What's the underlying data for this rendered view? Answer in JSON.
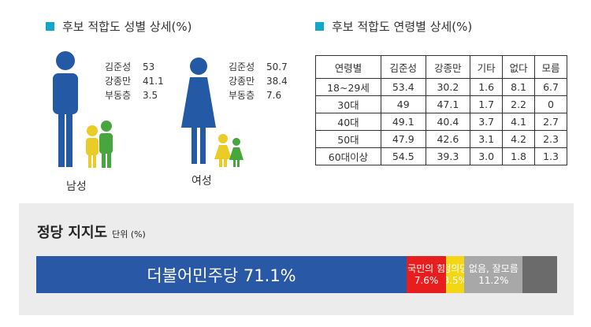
{
  "gender_section": {
    "title": "후보 적합도 성별 상세(%)",
    "male": {
      "caption": "남성",
      "stats": [
        {
          "name": "김준성",
          "value": "53"
        },
        {
          "name": "강종만",
          "value": "41.1"
        },
        {
          "name": "부동층",
          "value": "3.5"
        }
      ]
    },
    "female": {
      "caption": "여성",
      "stats": [
        {
          "name": "김준성",
          "value": "50.7"
        },
        {
          "name": "강종만",
          "value": "38.4"
        },
        {
          "name": "부동층",
          "value": "7.6"
        }
      ]
    },
    "colors": {
      "male_big": "#2459a6",
      "green": "#47a63e",
      "yellow": "#ebcb26"
    }
  },
  "age_section": {
    "title": "후보 적합도 연령별  상세(%)",
    "headers": [
      "연령별",
      "김준성",
      "강종만",
      "기타",
      "없다",
      "모름"
    ],
    "rows": [
      [
        "18~29세",
        "53.4",
        "30.2",
        "1.6",
        "8.1",
        "6.7"
      ],
      [
        "30대",
        "49",
        "47.1",
        "1.7",
        "2.2",
        "0"
      ],
      [
        "40대",
        "49.1",
        "40.4",
        "3.7",
        "4.1",
        "2.7"
      ],
      [
        "50대",
        "47.9",
        "42.6",
        "3.1",
        "4.2",
        "2.3"
      ],
      [
        "60대이상",
        "54.5",
        "39.3",
        "3.0",
        "1.8",
        "1.3"
      ]
    ]
  },
  "party_section": {
    "title": "정당 지지도",
    "unit": "단위 (%)"
  },
  "chart_data": {
    "type": "bar",
    "title": "정당 지지도",
    "unit": "단위 (%)",
    "categories": [
      "더불어민주당",
      "국민의 힘",
      "정의당",
      "없음, 잘모름"
    ],
    "values": [
      71.1,
      7.6,
      3.5,
      11.2
    ],
    "value_labels": [
      "71.1%",
      "7.6%",
      "3.5%",
      "11.2%"
    ],
    "colors": [
      "#2858a6",
      "#e81e1e",
      "#f3d615",
      "#a8a8a8"
    ],
    "remainder_color": "#6b6b6b",
    "stacked": true
  }
}
